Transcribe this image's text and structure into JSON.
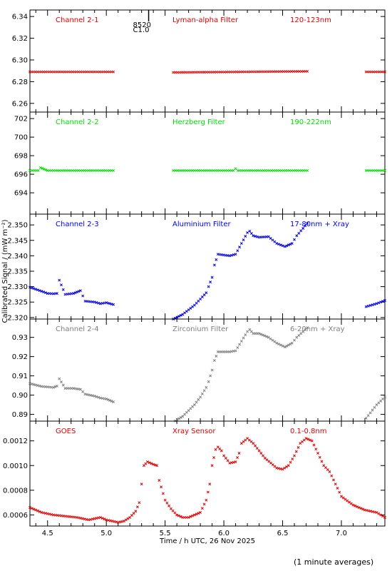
{
  "chart_data": [
    {
      "type": "scatter",
      "title": "",
      "xlim": [
        4.35,
        7.37
      ],
      "ylim": [
        6.252,
        6.346
      ],
      "yticks": [
        "6.26",
        "6.28",
        "6.30",
        "6.32",
        "6.34"
      ],
      "color": "#e00000",
      "labels": [
        "Channel 2-1",
        "Lyman-alpha Filter",
        "120-123nm"
      ],
      "series": [
        {
          "segments": [
            {
              "x": [
                4.35,
                5.06
              ],
              "y": [
                6.289,
                6.289
              ]
            },
            {
              "x": [
                5.57,
                6.71
              ],
              "y": [
                6.2885,
                6.2895
              ]
            },
            {
              "x": [
                7.21,
                7.37
              ],
              "y": [
                6.289,
                6.289
              ]
            }
          ]
        }
      ],
      "event_marker": {
        "x": 5.36,
        "labels": [
          "8520",
          "C1.0"
        ]
      }
    },
    {
      "type": "scatter",
      "xlim": [
        4.35,
        7.37
      ],
      "ylim": [
        691.7,
        702.7
      ],
      "yticks": [
        "694",
        "696",
        "698",
        "700",
        "702"
      ],
      "color": "#00e000",
      "labels": [
        "Channel 2-2",
        "Herzberg Filter",
        "190-222nm"
      ],
      "series": [
        {
          "segments": [
            {
              "x": [
                4.35,
                4.42,
                4.44,
                4.5,
                5.06
              ],
              "y": [
                696.4,
                696.4,
                696.7,
                696.4,
                696.4
              ]
            },
            {
              "x": [
                5.57,
                6.08,
                6.1,
                6.12,
                6.71
              ],
              "y": [
                696.4,
                696.4,
                696.6,
                696.4,
                696.4
              ]
            },
            {
              "x": [
                7.21,
                7.37
              ],
              "y": [
                696.4,
                696.4
              ]
            }
          ]
        }
      ]
    },
    {
      "type": "scatter",
      "xlim": [
        4.35,
        7.37
      ],
      "ylim": [
        2.3195,
        2.3535
      ],
      "yticks": [
        "2.320",
        "2.325",
        "2.330",
        "2.335",
        "2.340",
        "2.345",
        "2.350"
      ],
      "color": "#0000e0",
      "labels": [
        "Channel 2-3",
        "Aluminium Filter",
        "17-80nm + Xray"
      ],
      "series": [
        {
          "segments": [
            {
              "x": [
                4.35,
                4.45,
                4.5,
                4.55,
                4.58,
                4.6,
                4.65,
                4.72,
                4.78,
                4.82,
                4.9,
                4.95,
                5.0,
                5.06
              ],
              "y": [
                2.3298,
                2.3285,
                2.3278,
                2.3277,
                2.3278,
                2.3321,
                2.3275,
                2.3278,
                2.3287,
                2.3253,
                2.325,
                2.3245,
                2.3248,
                2.3242
              ]
            },
            {
              "x": [
                5.57,
                5.65,
                5.75,
                5.8,
                5.85,
                5.87,
                5.9,
                5.92,
                5.95,
                6.05,
                6.1,
                6.15,
                6.2,
                6.22,
                6.25,
                6.3,
                6.38,
                6.45,
                6.52,
                6.58,
                6.62,
                6.71
              ],
              "y": [
                2.3195,
                2.321,
                2.324,
                2.326,
                2.328,
                2.33,
                2.333,
                2.337,
                2.3405,
                2.34,
                2.3405,
                2.344,
                2.3475,
                2.348,
                2.3465,
                2.346,
                2.3462,
                2.344,
                2.343,
                2.344,
                2.3465,
                2.3505
              ]
            },
            {
              "x": [
                7.21,
                7.3,
                7.37
              ],
              "y": [
                2.3235,
                2.3245,
                2.3255
              ]
            }
          ]
        }
      ]
    },
    {
      "type": "scatter",
      "xlim": [
        4.35,
        7.37
      ],
      "ylim": [
        0.8865,
        0.9395
      ],
      "yticks": [
        "0.89",
        "0.90",
        "0.91",
        "0.92",
        "0.93"
      ],
      "color": "#808080",
      "labels": [
        "Channel 2-4",
        "Zirconium Filter",
        "6-20nm + Xray"
      ],
      "series": [
        {
          "segments": [
            {
              "x": [
                4.35,
                4.45,
                4.55,
                4.58,
                4.6,
                4.65,
                4.72,
                4.78,
                4.82,
                4.9,
                4.95,
                5.0,
                5.06
              ],
              "y": [
                0.906,
                0.9045,
                0.904,
                0.9047,
                0.9085,
                0.9035,
                0.9035,
                0.903,
                0.9005,
                0.8995,
                0.8985,
                0.898,
                0.8965
              ]
            },
            {
              "x": [
                5.57,
                5.65,
                5.75,
                5.8,
                5.85,
                5.87,
                5.9,
                5.92,
                5.95,
                6.05,
                6.1,
                6.15,
                6.2,
                6.22,
                6.25,
                6.3,
                6.38,
                6.45,
                6.52,
                6.58,
                6.62,
                6.71
              ],
              "y": [
                0.886,
                0.889,
                0.895,
                0.899,
                0.904,
                0.907,
                0.913,
                0.918,
                0.9225,
                0.9225,
                0.923,
                0.928,
                0.933,
                0.934,
                0.932,
                0.932,
                0.93,
                0.927,
                0.925,
                0.927,
                0.93,
                0.935
              ]
            },
            {
              "x": [
                7.21,
                7.3,
                7.37
              ],
              "y": [
                0.888,
                0.895,
                0.899
              ]
            }
          ]
        }
      ]
    },
    {
      "type": "scatter",
      "xlim": [
        4.35,
        7.37
      ],
      "ylim": [
        0.00051,
        0.00136
      ],
      "yticks": [
        "0.0006",
        "0.0008",
        "0.0010",
        "0.0012"
      ],
      "xticks": [
        "4.5",
        "5.0",
        "5.5",
        "6.0",
        "6.5",
        "7.0"
      ],
      "xlabel": "Time / h UTC, 26 Nov 2025",
      "color": "#e00000",
      "labels": [
        "GOES",
        "Xray Sensor",
        "0.1-0.8nm"
      ],
      "series": [
        {
          "segments": [
            {
              "x": [
                4.35,
                4.45,
                4.55,
                4.65,
                4.75,
                4.8,
                4.85,
                4.9,
                4.95,
                5.0,
                5.05,
                5.1,
                5.15,
                5.2,
                5.25,
                5.28,
                5.3,
                5.32,
                5.35,
                5.4,
                5.43,
                5.45,
                5.5,
                5.55,
                5.6,
                5.65,
                5.7,
                5.75,
                5.8,
                5.85,
                5.88,
                5.9,
                5.93,
                5.95,
                5.98,
                6.0,
                6.05,
                6.1,
                6.13,
                6.15,
                6.2,
                6.25,
                6.3,
                6.35,
                6.4,
                6.45,
                6.5,
                6.55,
                6.6,
                6.65,
                6.7,
                6.75,
                6.8,
                6.85,
                6.9,
                6.95,
                7.0,
                7.1,
                7.2,
                7.3,
                7.37
              ],
              "y": [
                0.00066,
                0.00062,
                0.0006,
                0.00059,
                0.00058,
                0.00057,
                0.00056,
                0.00057,
                0.00058,
                0.00056,
                0.00055,
                0.00054,
                0.00055,
                0.00058,
                0.00063,
                0.0007,
                0.00085,
                0.001,
                0.00103,
                0.00101,
                0.001,
                0.00088,
                0.00072,
                0.00065,
                0.0006,
                0.00058,
                0.00058,
                0.0006,
                0.00062,
                0.00072,
                0.00085,
                0.001,
                0.00113,
                0.00115,
                0.00112,
                0.00108,
                0.00102,
                0.00103,
                0.0011,
                0.00118,
                0.00122,
                0.00118,
                0.00112,
                0.00106,
                0.00102,
                0.00098,
                0.00097,
                0.001,
                0.00108,
                0.00118,
                0.00122,
                0.0012,
                0.0011,
                0.001,
                0.00095,
                0.00085,
                0.00075,
                0.00068,
                0.00064,
                0.00062,
                0.00058
              ]
            }
          ]
        }
      ]
    }
  ],
  "ylabel": "Calibrated Signal / (mW m⁻²)",
  "footnote": "(1 minute averages)"
}
